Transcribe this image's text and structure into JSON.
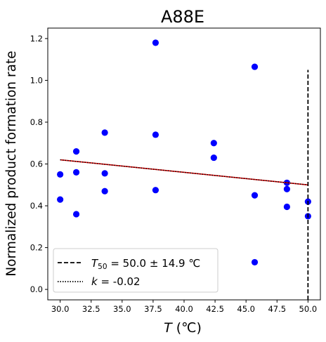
{
  "chart_data": {
    "type": "scatter",
    "title": "A88E",
    "xlabel_main": "T",
    "xlabel_unit": " (℃)",
    "ylabel": "Normalized product formation rate",
    "xlim": [
      29.0,
      51.0
    ],
    "ylim": [
      -0.05,
      1.25
    ],
    "x_ticks": [
      30.0,
      32.5,
      35.0,
      37.5,
      40.0,
      42.5,
      45.0,
      47.5,
      50.0
    ],
    "x_tick_labels": [
      "30.0",
      "32.5",
      "35.0",
      "37.5",
      "40.0",
      "42.5",
      "45.0",
      "47.5",
      "50.0"
    ],
    "y_ticks": [
      0.0,
      0.2,
      0.4,
      0.6,
      0.8,
      1.0,
      1.2
    ],
    "y_tick_labels": [
      "0.0",
      "0.2",
      "0.4",
      "0.6",
      "0.8",
      "1.0",
      "1.2"
    ],
    "grid": false,
    "legend_position": "lower-left",
    "points_color": "#0000ff",
    "series": [
      {
        "x": [
          30.0,
          30.0,
          31.3,
          31.3,
          31.3,
          33.6,
          33.6,
          33.6,
          37.7,
          37.7,
          37.7,
          42.4,
          42.4,
          45.7,
          45.7,
          45.7,
          48.3,
          48.3,
          48.3,
          50.0,
          50.0
        ],
        "y": [
          0.55,
          0.43,
          0.66,
          0.56,
          0.36,
          0.75,
          0.555,
          0.47,
          1.18,
          0.74,
          0.475,
          0.7,
          0.63,
          1.065,
          0.45,
          0.13,
          0.51,
          0.48,
          0.395,
          0.42,
          0.35
        ]
      }
    ],
    "fit_line": {
      "x": [
        30.0,
        50.0
      ],
      "y": [
        0.62,
        0.5
      ],
      "color": "#e00000"
    },
    "t50_line": {
      "x": 50.0,
      "y_range": [
        -0.05,
        1.05
      ]
    },
    "legend": [
      {
        "style": "dashed",
        "label_sym": "T",
        "label_sub": "50",
        "label_rest": " = 50.0 ± 14.9 ℃"
      },
      {
        "style": "dotted",
        "label_sym": "k",
        "label_rest": " = -0.02"
      }
    ]
  }
}
